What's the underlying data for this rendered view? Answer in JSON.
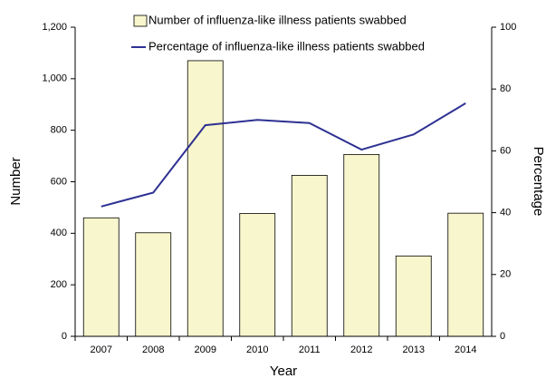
{
  "chart_data": {
    "type": "bar-line",
    "categories": [
      "2007",
      "2008",
      "2009",
      "2010",
      "2011",
      "2012",
      "2013",
      "2014"
    ],
    "series": [
      {
        "name": "Number of influenza-like illness patients swabbed",
        "color": "#f8f6cc",
        "type": "bar",
        "values": [
          460,
          402,
          1070,
          477,
          625,
          706,
          312,
          478
        ]
      },
      {
        "name": "Percentage of influenza-like illness patients swabbed",
        "color": "#2e3192",
        "type": "line",
        "axis": "y2",
        "values": [
          42,
          46.5,
          68.3,
          70,
          69,
          60.4,
          65.3,
          75.4
        ]
      }
    ],
    "x_label": "Year",
    "y_label": "Number",
    "y2_label": "Percentage",
    "ylim": [
      0,
      1200
    ],
    "yticks": [
      0,
      200,
      400,
      600,
      800,
      {
        "value": 1000,
        "label": "1,000"
      },
      {
        "value": 1200,
        "label": "1,200"
      }
    ],
    "y2lim": [
      0,
      100
    ],
    "y2ticks": [
      0,
      20,
      40,
      60,
      80,
      100
    ]
  }
}
